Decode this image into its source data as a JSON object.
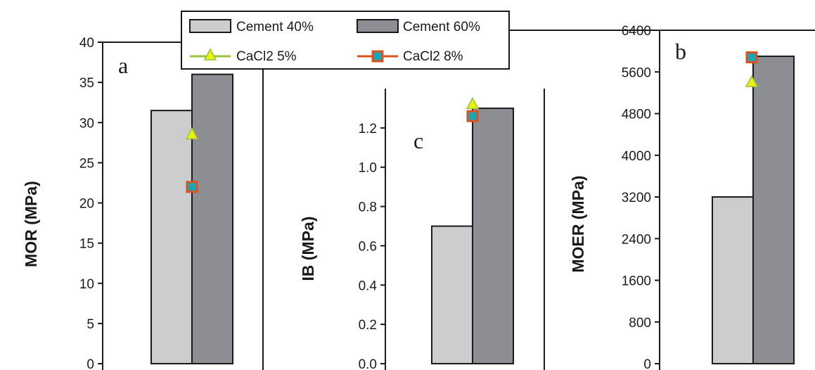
{
  "colors": {
    "cement_40": "#cbcdcf",
    "cement_60": "#8d8e93",
    "cacl2_5_fill": "#e8f014",
    "cacl2_5_line": "#9ac43a",
    "cacl2_8_fill": "#1aa6b5",
    "cacl2_8_line": "#e0521c",
    "axis": "#1a1a1a"
  },
  "legend": {
    "items": [
      {
        "label": "Cement 40%",
        "kind": "bar",
        "color_key": "cement_40"
      },
      {
        "label": "Cement 60%",
        "kind": "bar",
        "color_key": "cement_60"
      },
      {
        "label": "CaCl2 5%",
        "kind": "triangle",
        "color_key": "cacl2_5"
      },
      {
        "label": "CaCl2 8%",
        "kind": "square",
        "color_key": "cacl2_8"
      }
    ],
    "placement": "top-center"
  },
  "chart_data": [
    {
      "type": "bar",
      "panel": "a",
      "ylabel": "MOR (MPa)",
      "ylim": [
        0,
        40
      ],
      "yticks": [
        0,
        5,
        10,
        15,
        20,
        25,
        30,
        35,
        40
      ],
      "series": [
        {
          "name": "Cement 40%",
          "values": [
            31.5
          ]
        },
        {
          "name": "Cement 60%",
          "values": [
            36.0
          ]
        }
      ],
      "markers": [
        {
          "name": "CaCl2 5%",
          "shape": "triangle",
          "value": 28.5
        },
        {
          "name": "CaCl2 8%",
          "shape": "square",
          "value": 22.0
        }
      ]
    },
    {
      "type": "bar",
      "panel": "c",
      "ylabel": "IB (MPa)",
      "ylim": [
        0,
        1.4
      ],
      "yticks": [
        "0.0",
        "0.2",
        "0.4",
        "0.6",
        "0.8",
        "1.0",
        "1.2"
      ],
      "series": [
        {
          "name": "Cement 40%",
          "values": [
            0.7
          ]
        },
        {
          "name": "Cement 60%",
          "values": [
            1.3
          ]
        }
      ],
      "markers": [
        {
          "name": "CaCl2 5%",
          "shape": "triangle",
          "value": 1.32
        },
        {
          "name": "CaCl2 8%",
          "shape": "square",
          "value": 1.26
        }
      ]
    },
    {
      "type": "bar",
      "panel": "b",
      "ylabel": "MOER (MPa)",
      "ylim": [
        0,
        6400
      ],
      "yticks": [
        0,
        800,
        1600,
        2400,
        3200,
        4000,
        4800,
        5600,
        6400
      ],
      "series": [
        {
          "name": "Cement 40%",
          "values": [
            3200
          ]
        },
        {
          "name": "Cement 60%",
          "values": [
            5900
          ]
        }
      ],
      "markers": [
        {
          "name": "CaCl2 5%",
          "shape": "triangle",
          "value": 5400
        },
        {
          "name": "CaCl2 8%",
          "shape": "square",
          "value": 5880
        }
      ]
    }
  ]
}
